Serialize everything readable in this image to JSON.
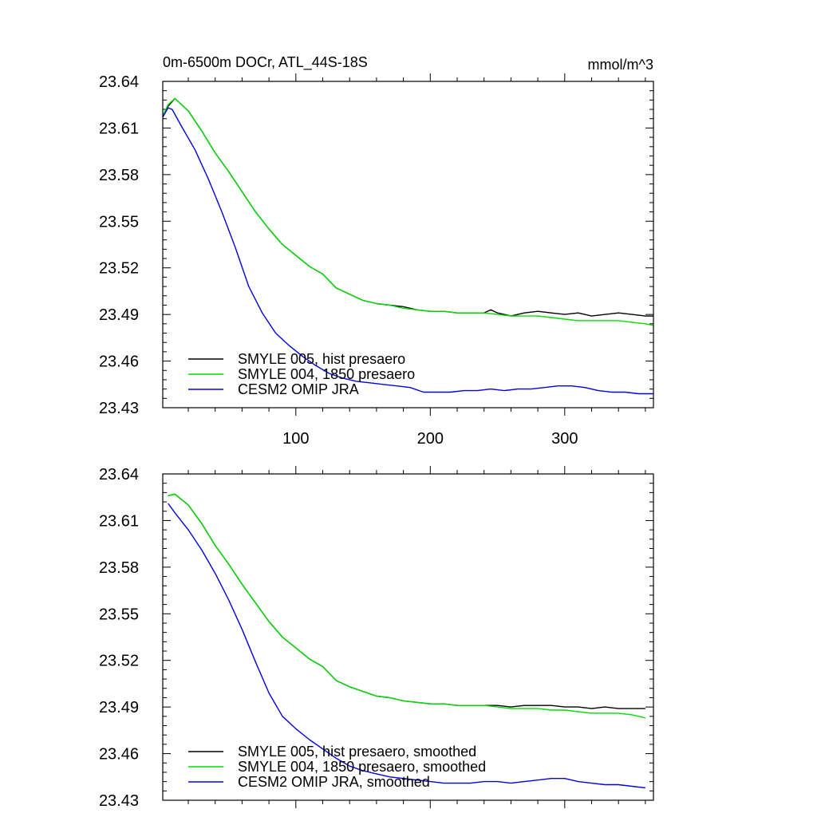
{
  "chart_data": [
    {
      "type": "line",
      "title": "0m-6500m DOCr, ATL_44S-18S",
      "units": "mmol/m^3",
      "xlim": [
        1,
        366
      ],
      "ylim": [
        23.43,
        23.64
      ],
      "xticks": [
        100,
        200,
        300
      ],
      "xtick_labels": [
        "100",
        "200",
        "300"
      ],
      "yticks": [
        23.43,
        23.46,
        23.49,
        23.52,
        23.55,
        23.58,
        23.61,
        23.64
      ],
      "ytick_labels": [
        "23.43",
        "23.46",
        "23.49",
        "23.52",
        "23.55",
        "23.58",
        "23.61",
        "23.64"
      ],
      "legend_position": "bottom-left",
      "series": [
        {
          "name": "SMYLE 005, hist presaero",
          "color": "#000000",
          "x": [
            1,
            5,
            10,
            20,
            30,
            40,
            50,
            60,
            70,
            80,
            90,
            100,
            110,
            120,
            130,
            140,
            150,
            160,
            170,
            180,
            190,
            200,
            210,
            220,
            230,
            240,
            245,
            250,
            255,
            260,
            270,
            280,
            290,
            300,
            310,
            320,
            330,
            340,
            350,
            360,
            366
          ],
          "y": [
            23.618,
            23.624,
            23.629,
            23.621,
            23.608,
            23.594,
            23.582,
            23.569,
            23.556,
            23.545,
            23.535,
            23.528,
            23.521,
            23.516,
            23.507,
            23.503,
            23.499,
            23.497,
            23.496,
            23.495,
            23.493,
            23.492,
            23.492,
            23.491,
            23.491,
            23.491,
            23.493,
            23.491,
            23.49,
            23.489,
            23.491,
            23.492,
            23.491,
            23.49,
            23.491,
            23.489,
            23.49,
            23.491,
            23.49,
            23.489,
            23.489
          ]
        },
        {
          "name": "SMYLE 004, 1850 presaero",
          "color": "#00dd00",
          "x": [
            1,
            5,
            10,
            20,
            30,
            40,
            50,
            60,
            70,
            80,
            90,
            100,
            110,
            120,
            130,
            140,
            150,
            160,
            170,
            180,
            190,
            200,
            210,
            220,
            230,
            240,
            250,
            260,
            270,
            280,
            290,
            300,
            310,
            320,
            330,
            340,
            350,
            360,
            366
          ],
          "y": [
            23.618,
            23.625,
            23.629,
            23.621,
            23.608,
            23.594,
            23.582,
            23.569,
            23.556,
            23.545,
            23.535,
            23.528,
            23.521,
            23.516,
            23.507,
            23.503,
            23.499,
            23.497,
            23.496,
            23.494,
            23.493,
            23.492,
            23.492,
            23.491,
            23.491,
            23.491,
            23.49,
            23.489,
            23.489,
            23.489,
            23.488,
            23.487,
            23.486,
            23.486,
            23.486,
            23.486,
            23.485,
            23.484,
            23.483
          ]
        },
        {
          "name": "CESM2 OMIP JRA",
          "color": "#0000e6",
          "x": [
            1,
            5,
            8,
            15,
            25,
            35,
            45,
            55,
            65,
            75,
            85,
            95,
            105,
            115,
            125,
            135,
            145,
            155,
            165,
            175,
            185,
            195,
            205,
            215,
            225,
            235,
            245,
            255,
            265,
            275,
            285,
            295,
            305,
            315,
            325,
            335,
            345,
            355,
            366
          ],
          "y": [
            23.617,
            23.623,
            23.622,
            23.611,
            23.596,
            23.577,
            23.556,
            23.533,
            23.508,
            23.491,
            23.478,
            23.47,
            23.463,
            23.457,
            23.452,
            23.449,
            23.447,
            23.446,
            23.445,
            23.444,
            23.443,
            23.44,
            23.44,
            23.44,
            23.441,
            23.441,
            23.442,
            23.441,
            23.442,
            23.442,
            23.443,
            23.444,
            23.444,
            23.443,
            23.441,
            23.44,
            23.44,
            23.439,
            23.439
          ]
        }
      ]
    },
    {
      "type": "line",
      "title": "",
      "xlim": [
        1,
        366
      ],
      "ylim": [
        23.43,
        23.64
      ],
      "xticks": [
        100,
        200,
        300
      ],
      "xtick_labels": [],
      "yticks": [
        23.43,
        23.46,
        23.49,
        23.52,
        23.55,
        23.58,
        23.61,
        23.64
      ],
      "ytick_labels": [
        "23.43",
        "23.46",
        "23.49",
        "23.52",
        "23.55",
        "23.58",
        "23.61",
        "23.64"
      ],
      "legend_position": "bottom-left",
      "series": [
        {
          "name": "SMYLE 005, hist presaero, smoothed",
          "color": "#000000",
          "x": [
            5,
            10,
            20,
            30,
            40,
            50,
            60,
            70,
            80,
            90,
            100,
            110,
            120,
            130,
            140,
            150,
            160,
            170,
            180,
            190,
            200,
            210,
            220,
            230,
            240,
            250,
            260,
            270,
            280,
            290,
            300,
            310,
            320,
            330,
            340,
            350,
            360
          ],
          "y": [
            23.626,
            23.627,
            23.62,
            23.608,
            23.594,
            23.582,
            23.569,
            23.557,
            23.545,
            23.535,
            23.528,
            23.521,
            23.516,
            23.507,
            23.503,
            23.5,
            23.497,
            23.496,
            23.494,
            23.493,
            23.492,
            23.492,
            23.491,
            23.491,
            23.491,
            23.491,
            23.49,
            23.491,
            23.491,
            23.491,
            23.49,
            23.49,
            23.489,
            23.49,
            23.489,
            23.489,
            23.489
          ]
        },
        {
          "name": "SMYLE 004, 1850 presaero, smoothed",
          "color": "#00dd00",
          "x": [
            5,
            10,
            20,
            30,
            40,
            50,
            60,
            70,
            80,
            90,
            100,
            110,
            120,
            130,
            140,
            150,
            160,
            170,
            180,
            190,
            200,
            210,
            220,
            230,
            240,
            250,
            260,
            270,
            280,
            290,
            300,
            310,
            320,
            330,
            340,
            350,
            360
          ],
          "y": [
            23.626,
            23.627,
            23.62,
            23.608,
            23.594,
            23.582,
            23.569,
            23.557,
            23.545,
            23.535,
            23.528,
            23.521,
            23.516,
            23.507,
            23.503,
            23.5,
            23.497,
            23.496,
            23.494,
            23.493,
            23.492,
            23.492,
            23.491,
            23.491,
            23.491,
            23.49,
            23.489,
            23.489,
            23.489,
            23.488,
            23.488,
            23.487,
            23.486,
            23.486,
            23.486,
            23.485,
            23.483
          ]
        },
        {
          "name": "CESM2 OMIP JRA, smoothed",
          "color": "#0000e6",
          "x": [
            5,
            10,
            20,
            30,
            40,
            50,
            60,
            70,
            80,
            90,
            100,
            110,
            120,
            130,
            140,
            150,
            160,
            170,
            180,
            190,
            200,
            210,
            220,
            230,
            240,
            250,
            260,
            270,
            280,
            290,
            300,
            310,
            320,
            330,
            340,
            350,
            360
          ],
          "y": [
            23.621,
            23.615,
            23.604,
            23.591,
            23.576,
            23.559,
            23.54,
            23.519,
            23.499,
            23.484,
            23.476,
            23.469,
            23.463,
            23.457,
            23.452,
            23.449,
            23.447,
            23.445,
            23.444,
            23.443,
            23.442,
            23.441,
            23.441,
            23.441,
            23.442,
            23.442,
            23.441,
            23.442,
            23.443,
            23.444,
            23.444,
            23.442,
            23.441,
            23.44,
            23.44,
            23.439,
            23.438
          ]
        }
      ]
    }
  ]
}
